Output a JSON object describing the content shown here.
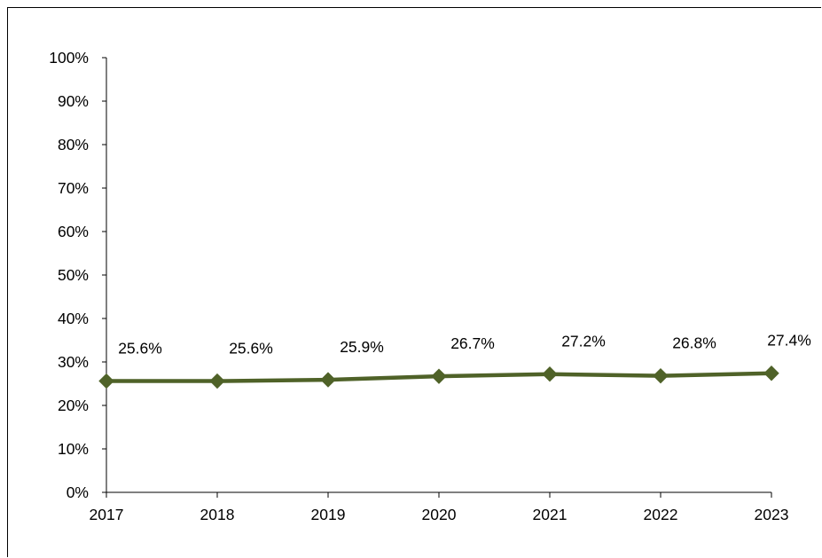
{
  "chart_data": {
    "type": "line",
    "categories": [
      "2017",
      "2018",
      "2019",
      "2020",
      "2021",
      "2022",
      "2023"
    ],
    "series": [
      {
        "values": [
          25.6,
          25.6,
          25.9,
          26.7,
          27.2,
          26.8,
          27.4
        ],
        "labels": [
          "25.6%",
          "25.6%",
          "25.9%",
          "26.7%",
          "27.2%",
          "26.8%",
          "27.4%"
        ],
        "color": "#4f6228",
        "marker": "diamond"
      }
    ],
    "ylim": [
      0,
      100
    ],
    "yticks": [
      "0%",
      "10%",
      "20%",
      "30%",
      "40%",
      "50%",
      "60%",
      "70%",
      "80%",
      "90%",
      "100%"
    ],
    "grid": false,
    "legend": "none"
  }
}
